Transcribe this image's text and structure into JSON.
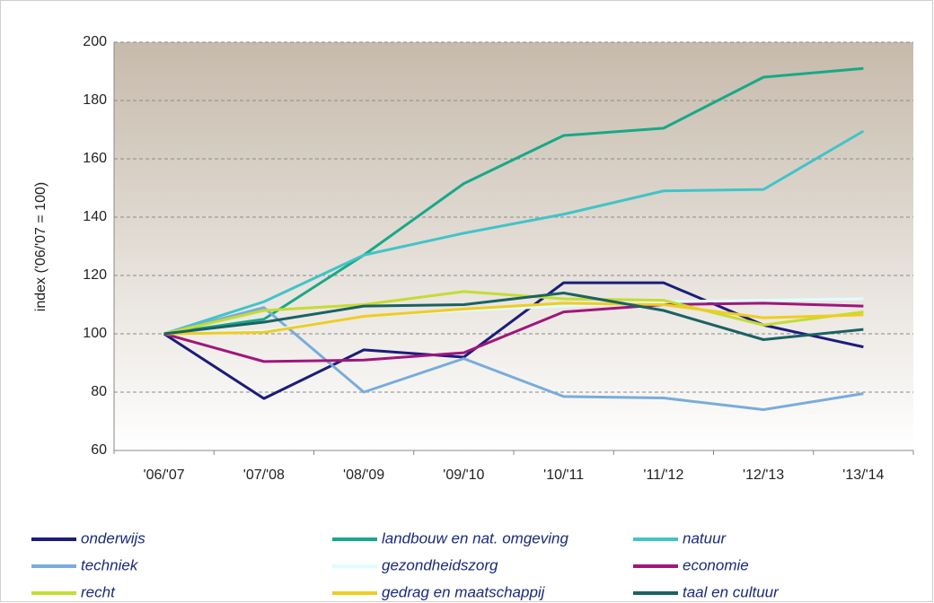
{
  "chart_data": {
    "type": "line",
    "y_label": "index ('06/'07 = 100)",
    "categories": [
      "'06/'07",
      "'07/'08",
      "'08/'09",
      "'09/'10",
      "'10/'11",
      "'11/'12",
      "'12/'13",
      "'13/'14"
    ],
    "ylim": [
      60,
      200
    ],
    "yticks": [
      60,
      80,
      100,
      120,
      140,
      160,
      180,
      200
    ],
    "grid": true,
    "series": [
      {
        "name": "onderwijs",
        "color": "#1c1c7c",
        "values": [
          100,
          77.8,
          94.5,
          92,
          117.5,
          117.5,
          103,
          95.5
        ]
      },
      {
        "name": "landbouw en nat. omgeving",
        "color": "#18a888",
        "values": [
          100,
          105,
          127,
          151.5,
          168,
          170.5,
          188,
          191
        ]
      },
      {
        "name": "natuur",
        "color": "#40c4c8",
        "values": [
          100,
          111,
          127,
          134.5,
          141,
          149,
          149.5,
          169.5
        ]
      },
      {
        "name": "techniek",
        "color": "#78acdc",
        "values": [
          100,
          109,
          80,
          91.5,
          78.5,
          78,
          74,
          79.5
        ]
      },
      {
        "name": "gezondheidszorg",
        "color": "#e0fcff",
        "values": [
          100,
          101,
          106,
          108,
          109.5,
          111,
          111.5,
          112
        ]
      },
      {
        "name": "economie",
        "color": "#a0167c",
        "values": [
          100,
          90.5,
          91,
          93.5,
          107.5,
          110,
          110.5,
          109.5
        ]
      },
      {
        "name": "recht",
        "color": "#c4dc30",
        "values": [
          100,
          108,
          110,
          114.5,
          112,
          111.5,
          103,
          107.5
        ]
      },
      {
        "name": "gedrag en maatschappij",
        "color": "#f0cc20",
        "values": [
          100,
          100.5,
          106,
          108.5,
          110.5,
          110,
          105.5,
          106.5
        ]
      },
      {
        "name": "taal en cultuur",
        "color": "#1a6262",
        "values": [
          100,
          104,
          109.5,
          110,
          114,
          108,
          98,
          101.5
        ]
      }
    ]
  }
}
